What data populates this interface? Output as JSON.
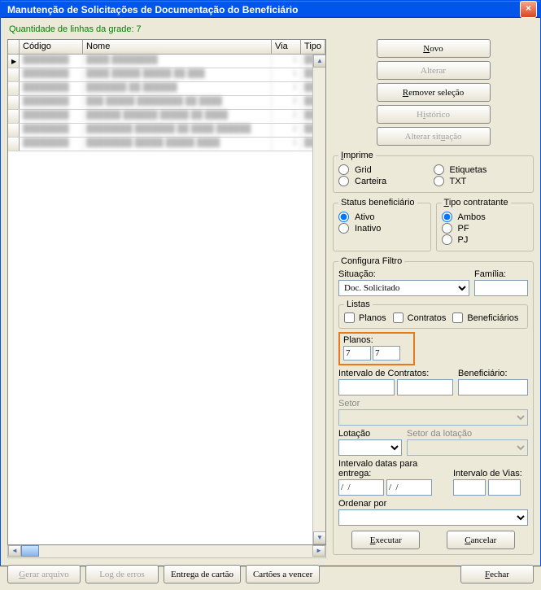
{
  "window": {
    "title": "Manutenção de Solicitações de Documentação do Beneficiário",
    "close_btn": "×"
  },
  "rowcount_label": "Quantidade de linhas da grade: 7",
  "grid": {
    "columns": {
      "codigo": "Código",
      "nome": "Nome",
      "via": "Via",
      "tipo": "Tipo"
    },
    "rows": [
      {
        "codigo": "████████",
        "nome": "████ ████████",
        "via": "1",
        "tipo": "███"
      },
      {
        "codigo": "████████",
        "nome": "████ █████ █████ ██ ███",
        "via": "1",
        "tipo": "███"
      },
      {
        "codigo": "████████",
        "nome": "███████ ██ ██████",
        "via": "1",
        "tipo": "███"
      },
      {
        "codigo": "████████",
        "nome": "███ █████ ████████ ██ ████",
        "via": "2",
        "tipo": "███"
      },
      {
        "codigo": "████████",
        "nome": "██████ ██████ █████ ██ ████",
        "via": "2",
        "tipo": "███"
      },
      {
        "codigo": "████████",
        "nome": "████████ ███████ ██ ████ ██████",
        "via": "2",
        "tipo": "███"
      },
      {
        "codigo": "████████",
        "nome": "████████ █████ █████ ████",
        "via": "1",
        "tipo": "███"
      }
    ]
  },
  "top_buttons": {
    "novo": "Novo",
    "alterar": "Alterar",
    "remover": "Remover seleção",
    "historico": "Histórico",
    "alterar_situacao": "Alterar situação"
  },
  "imprime": {
    "legend": "Imprime",
    "grid": "Grid",
    "carteira": "Carteira",
    "etiquetas": "Etiquetas",
    "txt": "TXT"
  },
  "status": {
    "legend": "Status beneficiário",
    "ativo": "Ativo",
    "inativo": "Inativo",
    "selected": "ativo"
  },
  "tipo_contratante": {
    "legend": "Tipo contratante",
    "ambos": "Ambos",
    "pf": "PF",
    "pj": "PJ",
    "selected": "ambos"
  },
  "filtro": {
    "legend": "Configura Filtro",
    "situacao_lbl": "Situação:",
    "situacao_val": "Doc. Solicitado",
    "familia_lbl": "Família:",
    "listas": {
      "legend": "Listas",
      "planos": "Planos",
      "contratos": "Contratos",
      "benef": "Beneficiários"
    },
    "planos": {
      "lbl": "Planos:",
      "from": "7",
      "to": "7"
    },
    "intervalo_contratos_lbl": "Intervalo de Contratos:",
    "beneficiario_lbl": "Beneficiário:",
    "setor_lbl": "Setor",
    "lotacao_lbl": "Lotação",
    "setor_lotacao_lbl": "Setor da lotação",
    "intervalo_datas_lbl": "Intervalo datas para entrega:",
    "intervalo_vias_lbl": "Intervalo de Vias:",
    "date_from": "/  /",
    "date_to": "/  /",
    "ordenar_lbl": "Ordenar por",
    "executar": "Executar",
    "cancelar": "Cancelar"
  },
  "bottom": {
    "gerar_arquivo": "Gerar arquivo",
    "log_erros": "Log de erros",
    "entrega_cartao": "Entrega de cartão",
    "cartoes_vencer": "Cartões a vencer",
    "fechar": "Fechar"
  },
  "colors": {
    "titlebar": "#0055ea",
    "bg": "#ece9d8",
    "highlight_border": "#e87a1c",
    "rowcount": "#008000"
  }
}
